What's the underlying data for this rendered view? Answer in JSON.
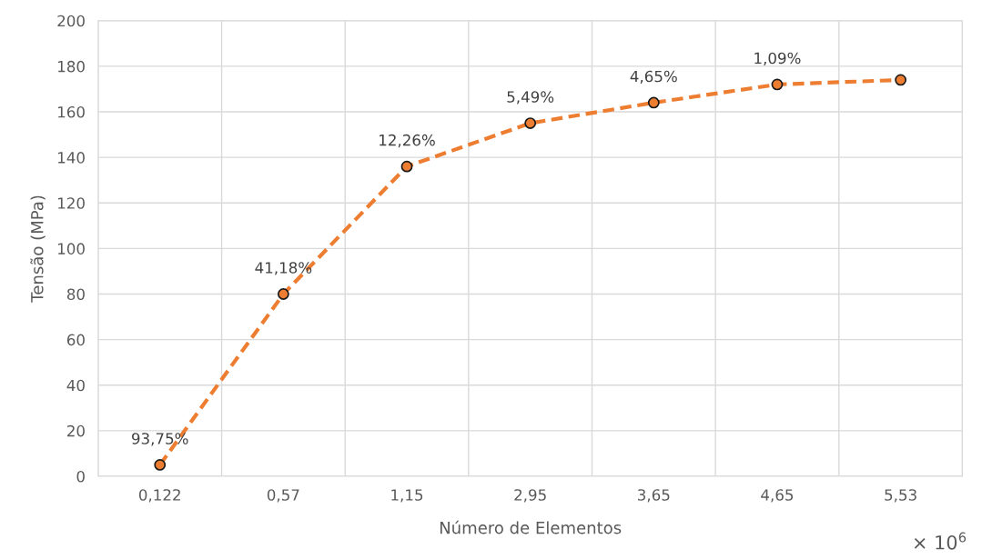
{
  "chart_data": {
    "type": "line",
    "xlabel": "Número de Elementos",
    "ylabel": "Tensão (MPa)",
    "categories": [
      "0,122",
      "0,57",
      "1,15",
      "2,95",
      "3,65",
      "4,65",
      "5,53"
    ],
    "series": [
      {
        "color": "#ed7d31",
        "values": [
          5,
          80,
          136,
          155,
          164,
          172,
          174
        ]
      }
    ],
    "ylim": [
      0,
      200
    ],
    "yticks": [
      0,
      20,
      40,
      60,
      80,
      100,
      120,
      140,
      160,
      180,
      200
    ],
    "grid": true,
    "marker": "circle",
    "line_style": "dashed",
    "annotations": [
      {
        "text": "93,75%",
        "x": "0,122",
        "y": 5
      },
      {
        "text": "41,18%",
        "x": "0,57",
        "y": 80
      },
      {
        "text": "12,26%",
        "x": "1,15",
        "y": 136
      },
      {
        "text": "5,49%",
        "x": "2,95",
        "y": 155
      },
      {
        "text": "4,65%",
        "x": "3,65",
        "y": 164
      },
      {
        "text": "1,09%",
        "x": "4,65",
        "y": 172
      },
      "× 10$^{6}$"
    ]
  }
}
